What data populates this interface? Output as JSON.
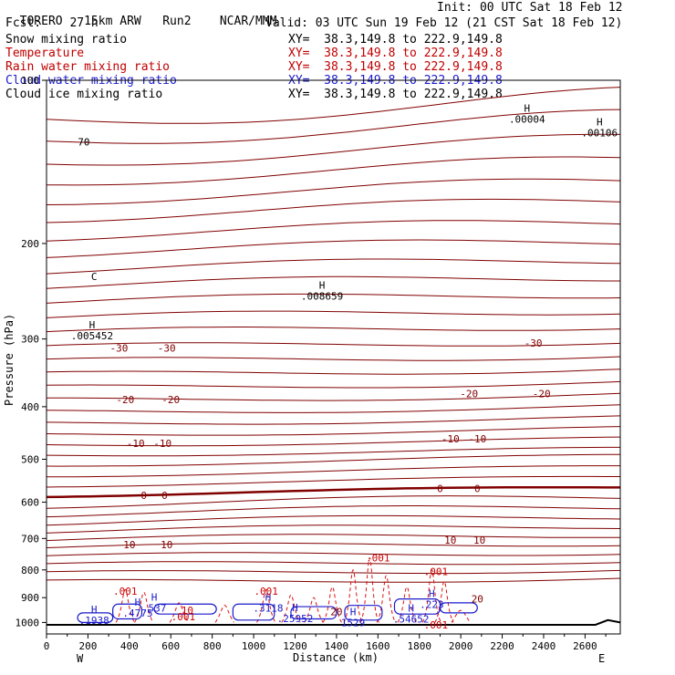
{
  "header": {
    "model": "TORERO",
    "resolution": "15km ARW",
    "run": "Run2",
    "org": "NCAR/MMM",
    "init": "Init: 00 UTC Sat 18 Feb 12",
    "fcst_label": "Fcst:",
    "fcst_value": "27 h",
    "valid": "Valid: 03 UTC Sun 19 Feb 12 (21 CST Sat 18 Feb 12)"
  },
  "fields": [
    {
      "name": "Snow mixing ratio",
      "color": "#000000",
      "xy": "XY=  38.3,149.8 to 222.9,149.8"
    },
    {
      "name": "Temperature",
      "color": "#cc0000",
      "xy": "XY=  38.3,149.8 to 222.9,149.8"
    },
    {
      "name": "Rain water mixing ratio",
      "color": "#cc0000",
      "xy": "XY=  38.3,149.8 to 222.9,149.8"
    },
    {
      "name": "Cloud water mixing ratio",
      "color": "#1a1acc",
      "xy": "XY=  38.3,149.8 to 222.9,149.8"
    },
    {
      "name": "Cloud ice mixing ratio",
      "color": "#000000",
      "xy": "XY=  38.3,149.8 to 222.9,149.8"
    }
  ],
  "chart_data": {
    "type": "line",
    "xlabel": "Distance (km)",
    "ylabel": "Pressure (hPa)",
    "xlim": [
      0,
      2770
    ],
    "ylim": [
      1050,
      100
    ],
    "y_scale": "log",
    "x_ticks": [
      0,
      200,
      400,
      600,
      800,
      1000,
      1200,
      1400,
      1600,
      1800,
      2000,
      2200,
      2400,
      2600
    ],
    "y_ticks": [
      100,
      200,
      300,
      400,
      500,
      600,
      700,
      800,
      900,
      1000
    ],
    "x_end_labels": {
      "left": "W",
      "right": "E"
    },
    "temperature_contours": [
      {
        "level": -30,
        "labels": [
          {
            "x": 350,
            "p": 312
          },
          {
            "x": 580,
            "p": 312
          },
          {
            "x": 2350,
            "p": 305
          }
        ]
      },
      {
        "level": -20,
        "labels": [
          {
            "x": 380,
            "p": 388
          },
          {
            "x": 600,
            "p": 388
          },
          {
            "x": 2040,
            "p": 378
          },
          {
            "x": 2390,
            "p": 378
          }
        ]
      },
      {
        "level": -10,
        "labels": [
          {
            "x": 430,
            "p": 467
          },
          {
            "x": 560,
            "p": 467
          },
          {
            "x": 1950,
            "p": 458
          },
          {
            "x": 2080,
            "p": 458
          }
        ]
      },
      {
        "level": 0,
        "labels": [
          {
            "x": 470,
            "p": 583
          },
          {
            "x": 570,
            "p": 583
          },
          {
            "x": 1900,
            "p": 566
          },
          {
            "x": 2080,
            "p": 566
          }
        ]
      },
      {
        "level": 10,
        "labels": [
          {
            "x": 400,
            "p": 718
          },
          {
            "x": 580,
            "p": 718
          },
          {
            "x": 1950,
            "p": 705
          },
          {
            "x": 2090,
            "p": 705
          }
        ]
      },
      {
        "level": 20,
        "labels": [
          {
            "x": 1400,
            "p": 955
          },
          {
            "x": 2080,
            "p": 905
          }
        ]
      }
    ],
    "highs": [
      {
        "label": "H",
        "value": ".005452",
        "x": 220,
        "p": 296
      },
      {
        "label": "H",
        "value": ".008659",
        "x": 1330,
        "p": 250
      },
      {
        "label": "H",
        "value": ".00004",
        "x": 2320,
        "p": 118
      },
      {
        "label": "H",
        "value": ".00106",
        "x": 2670,
        "p": 125
      },
      {
        "label": "H",
        "value": ".1938",
        "x": 230,
        "p": 990
      },
      {
        "label": "H",
        "value": ".4775",
        "x": 440,
        "p": 960
      },
      {
        "label": "H",
        "value": ".537",
        "x": 520,
        "p": 940
      },
      {
        "label": "H",
        "value": ".3118",
        "x": 1070,
        "p": 940
      },
      {
        "label": "H",
        "value": ".25952",
        "x": 1200,
        "p": 983
      },
      {
        "label": "H",
        "value": "1529",
        "x": 1480,
        "p": 1000
      },
      {
        "label": "H",
        "value": ".54652",
        "x": 1760,
        "p": 985
      },
      {
        "label": "H",
        "value": ".223",
        "x": 1860,
        "p": 925
      }
    ],
    "rain_labels": [
      {
        "value": ".001",
        "x": 380,
        "p": 875
      },
      {
        "value": ".001",
        "x": 1060,
        "p": 875
      },
      {
        "value": ".001",
        "x": 1600,
        "p": 760
      },
      {
        "value": ".001",
        "x": 1880,
        "p": 805
      },
      {
        "value": ".001",
        "x": 660,
        "p": 975
      },
      {
        "value": ".001",
        "x": 1880,
        "p": 1010
      },
      {
        "value": "10",
        "x": 680,
        "p": 950
      }
    ],
    "other_labels": [
      {
        "value": "C",
        "x": 230,
        "p": 230
      },
      {
        "value": "70",
        "x": 180,
        "p": 130
      }
    ]
  }
}
